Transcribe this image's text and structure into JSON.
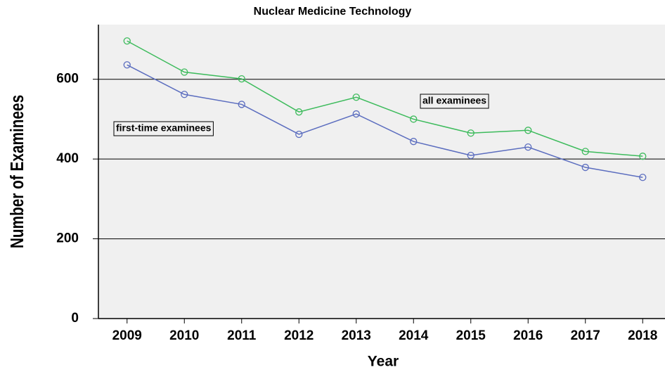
{
  "chart_data": {
    "type": "line",
    "title": "Nuclear Medicine Technology",
    "x_label": "Year",
    "y_label": "Number of Examinees",
    "categories": [
      "2009",
      "2010",
      "2011",
      "2012",
      "2013",
      "2014",
      "2015",
      "2016",
      "2017",
      "2018"
    ],
    "series": [
      {
        "name": "all examinees",
        "color": "#3dbb5c",
        "values": [
          696,
          618,
          601,
          518,
          555,
          500,
          465,
          472,
          419,
          407
        ]
      },
      {
        "name": "first-time examinees",
        "color": "#5b6dbf",
        "values": [
          636,
          562,
          537,
          462,
          513,
          444,
          409,
          430,
          379,
          354
        ]
      }
    ],
    "ylim": [
      0,
      737
    ],
    "yticks": [
      0,
      200,
      400,
      600
    ],
    "grid": true
  }
}
